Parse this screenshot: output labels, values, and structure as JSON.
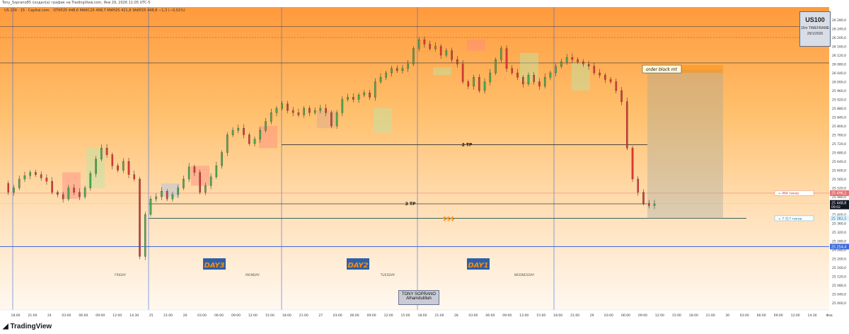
{
  "header": {
    "title": "Tony_Soprano85 создал(а) график на TradingView.com, Янв 29, 2026 11:05 UTC-5",
    "symbol_line": "US 100 · 15 · Capital.com",
    "ohlc": "ОТКР25 448,6   МАКС25 468,7   МИН25 421,8   ЗАКР25 448,8   −1,3 (−0,01%)"
  },
  "badge": {
    "symbol": "US100",
    "timeframe": "15m TIMEFRAME",
    "date": "29/1/2026"
  },
  "footer": {
    "logo": "TradingView"
  },
  "annotations": {
    "order_block": "order block mt",
    "tp2": "2 TP",
    "tp3": "3 TP",
    "liquidity": "$$$",
    "day3": "DAY3",
    "day2": "DAY2",
    "day1": "DAY1",
    "friday": "FRIDAY",
    "monday": "MONDAY",
    "tuesday": "TUESDAY",
    "wednesday": "WEDNESDAY",
    "signature_name": "TONY SOPRANO",
    "signature_text": "Alhamdulillah"
  },
  "price_tags": {
    "stop": "25 496,2",
    "current": "25 448,8",
    "countdown": "09:02",
    "target": "25 382,5",
    "low_line": "25 254,4",
    "stop_ticks": "+ 464 тиков",
    "target_ticks": "+ 7 317 тиков"
  },
  "colors": {
    "bull": "#4caf50",
    "bear": "#e53935",
    "background_top": "#ff9a3c",
    "background_bottom": "#fff6ec",
    "blue_line": "#3f6cdb",
    "gold_text": "#ff8c00",
    "label_bg": "#2e5fa8"
  },
  "chart_data": {
    "type": "candlestick",
    "symbol": "US 100",
    "timeframe": "15",
    "ylim": [
      25000,
      26280
    ],
    "y_ticks": [
      "26 280,0",
      "26 240,0",
      "26 200,0",
      "26 160,0",
      "26 120,0",
      "26 080,0",
      "26 040,0",
      "26 000,0",
      "25 960,0",
      "25 920,0",
      "25 880,0",
      "25 840,0",
      "25 800,0",
      "25 760,0",
      "25 720,0",
      "25 680,0",
      "25 640,0",
      "25 600,0",
      "25 560,0",
      "25 520,0",
      "25 480,0",
      "25 440,0",
      "25 400,0",
      "25 360,0",
      "25 320,0",
      "25 280,0",
      "25 240,0",
      "25 200,0",
      "25 160,0",
      "25 120,0",
      "25 080,0",
      "25 040,0",
      "25 000,0"
    ],
    "x_ticks": [
      "18:00",
      "21:00",
      "24",
      "03:00",
      "06:00",
      "09:00",
      "12:00",
      "14:30",
      "25",
      "21:00",
      "26",
      "03:00",
      "06:00",
      "09:00",
      "12:00",
      "15:00",
      "18:00",
      "21:00",
      "27",
      "03:00",
      "06:00",
      "09:00",
      "12:00",
      "15:00",
      "18:00",
      "21:00",
      "28",
      "03:00",
      "06:00",
      "09:00",
      "12:00",
      "15:00",
      "18:00",
      "21:00",
      "29",
      "03:00",
      "06:00",
      "09:00",
      "12:00",
      "15:00",
      "18:00",
      "21:00",
      "30",
      "03:00",
      "06:00",
      "09:00",
      "12:00",
      "14:30",
      "Фев"
    ],
    "path": [
      25540,
      25500,
      25520,
      25560,
      25575,
      25590,
      25580,
      25565,
      25550,
      25500,
      25490,
      25470,
      25520,
      25500,
      25480,
      25520,
      25585,
      25650,
      25700,
      25670,
      25620,
      25600,
      25640,
      25580,
      25560,
      25210,
      25400,
      25470,
      25480,
      25505,
      25470,
      25490,
      25520,
      25560,
      25615,
      25590,
      25500,
      25530,
      25570,
      25620,
      25680,
      25760,
      25780,
      25790,
      25760,
      25720,
      25740,
      25780,
      25820,
      25860,
      25880,
      25900,
      25870,
      25860,
      25850,
      25880,
      25860,
      25870,
      25880,
      25860,
      25800,
      25860,
      25920,
      25930,
      25920,
      25940,
      25950,
      25930,
      26000,
      26020,
      26040,
      26060,
      26050,
      26060,
      26080,
      26150,
      26190,
      26170,
      26150,
      26160,
      26120,
      26140,
      26100,
      26080,
      26000,
      25980,
      26020,
      25960,
      26000,
      26040,
      26100,
      26150,
      26060,
      26040,
      26020,
      25990,
      26030,
      26000,
      25980,
      26020,
      26040,
      26070,
      26090,
      26110,
      26100,
      26090,
      26080,
      26070,
      26040,
      26030,
      26010,
      26000,
      25960,
      25910,
      25700,
      25560,
      25500,
      25450,
      25440,
      25448
    ],
    "lines": [
      {
        "name": "order-block-line",
        "y": 26055
      },
      {
        "name": "2-tp-line",
        "y": 25715
      },
      {
        "name": "3-tp-line",
        "y": 25448
      },
      {
        "name": "liquidity-line",
        "y": 25382.5
      },
      {
        "name": "low-line",
        "y": 25254.4
      },
      {
        "name": "stop-line",
        "y": 25496.2
      },
      {
        "name": "top-line",
        "y": 26250
      }
    ]
  }
}
